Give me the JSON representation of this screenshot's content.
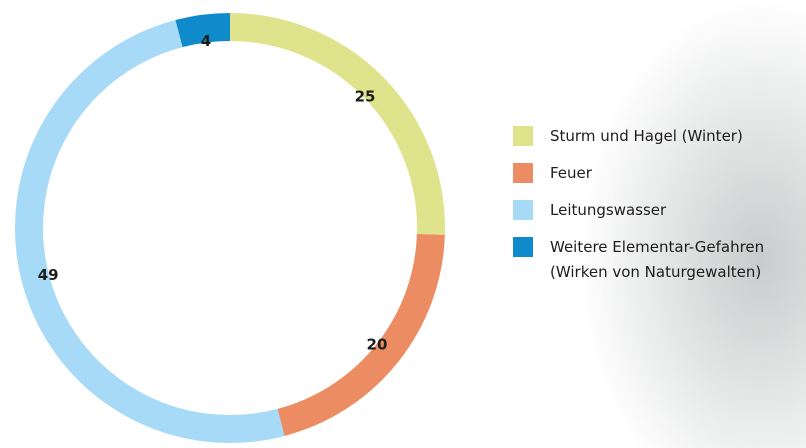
{
  "chart_data": {
    "type": "pie",
    "categories": [
      "Sturm und Hagel (Winter)",
      "Feuer",
      "Leitungswasser",
      "Weitere Elementar-Gefahren (Wirken von Naturgewalten)"
    ],
    "values": [
      25,
      20,
      49,
      4
    ],
    "colors": [
      "#dfe38c",
      "#ec8c62",
      "#a7daf7",
      "#0f8bcb"
    ]
  }
}
